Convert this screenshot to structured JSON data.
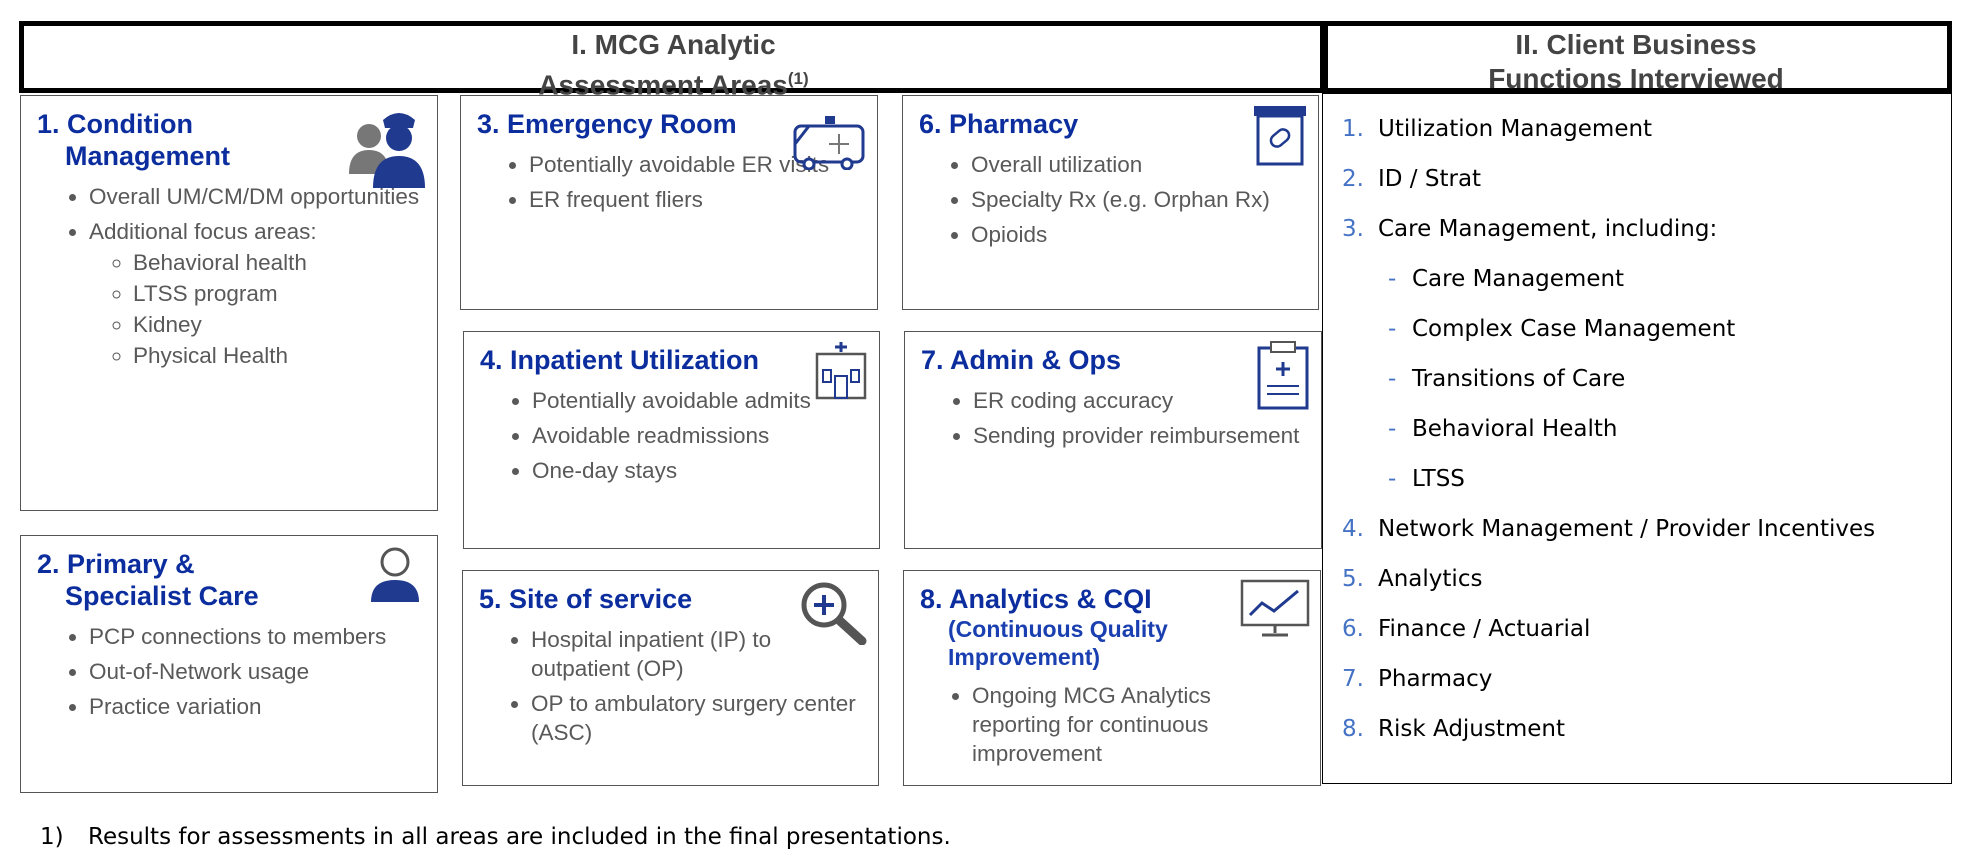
{
  "header": {
    "left_title": [
      "I. MCG Analytic",
      "Assessment Areas"
    ],
    "left_note": "(1)",
    "right_title": [
      "II. Client  Business",
      "Functions Interviewed"
    ]
  },
  "boxes": [
    {
      "title": [
        "1. Condition",
        "Management"
      ],
      "bullets": [
        {
          "text": "Overall UM/CM/DM opportunities"
        },
        {
          "text": "Additional focus areas:",
          "children": [
            "Behavioral health",
            "LTSS program",
            "Kidney",
            "Physical Health"
          ]
        }
      ]
    },
    {
      "title": [
        "2. Primary &",
        "Specialist Care"
      ],
      "bullets": [
        {
          "text": "PCP connections to members"
        },
        {
          "text": "Out-of-Network usage"
        },
        {
          "text": "Practice variation"
        }
      ]
    },
    {
      "title": [
        "3. Emergency Room"
      ],
      "bullets": [
        {
          "text": "Potentially avoidable ER visits"
        },
        {
          "text": "ER frequent fliers"
        }
      ]
    },
    {
      "title": [
        "4. Inpatient Utilization"
      ],
      "bullets": [
        {
          "text": "Potentially avoidable admits"
        },
        {
          "text": "Avoidable readmissions"
        },
        {
          "text": "One-day stays"
        }
      ]
    },
    {
      "title": [
        "5. Site of service"
      ],
      "bullets": [
        {
          "text": "Hospital inpatient (IP) to outpatient (OP)"
        },
        {
          "text": "OP to  ambulatory surgery center (ASC)"
        }
      ]
    },
    {
      "title": [
        "6. Pharmacy"
      ],
      "bullets": [
        {
          "text": "Overall utilization"
        },
        {
          "text": "Specialty Rx (e.g. Orphan Rx)"
        },
        {
          "text": "Opioids"
        }
      ]
    },
    {
      "title": [
        "7. Admin & Ops"
      ],
      "bullets": [
        {
          "text": "ER coding accuracy"
        },
        {
          "text": "Sending provider reimbursement"
        }
      ]
    },
    {
      "title": [
        "8. Analytics & CQI"
      ],
      "subtitle": [
        "(Continuous Quality",
        "Improvement)"
      ],
      "bullets": [
        {
          "text": "Ongoing MCG Analytics reporting for continuous improvement"
        }
      ]
    }
  ],
  "functions": [
    {
      "number": "1.",
      "text": "Utilization Management"
    },
    {
      "number": "2.",
      "text": "ID / Strat"
    },
    {
      "number": "3.",
      "text": "Care Management, including:",
      "children": [
        "Care Management",
        "Complex Case Management",
        "Transitions of Care",
        "Behavioral Health",
        "LTSS"
      ]
    },
    {
      "number": "4.",
      "text": "Network Management / Provider Incentives"
    },
    {
      "number": "5.",
      "text": "Analytics"
    },
    {
      "number": "6.",
      "text": "Finance / Actuarial"
    },
    {
      "number": "7.",
      "text": "Pharmacy"
    },
    {
      "number": "8.",
      "text": "Risk Adjustment"
    }
  ],
  "footnote": {
    "number": "1)",
    "text": "Results for assessments in all areas are included in the final presentations."
  }
}
